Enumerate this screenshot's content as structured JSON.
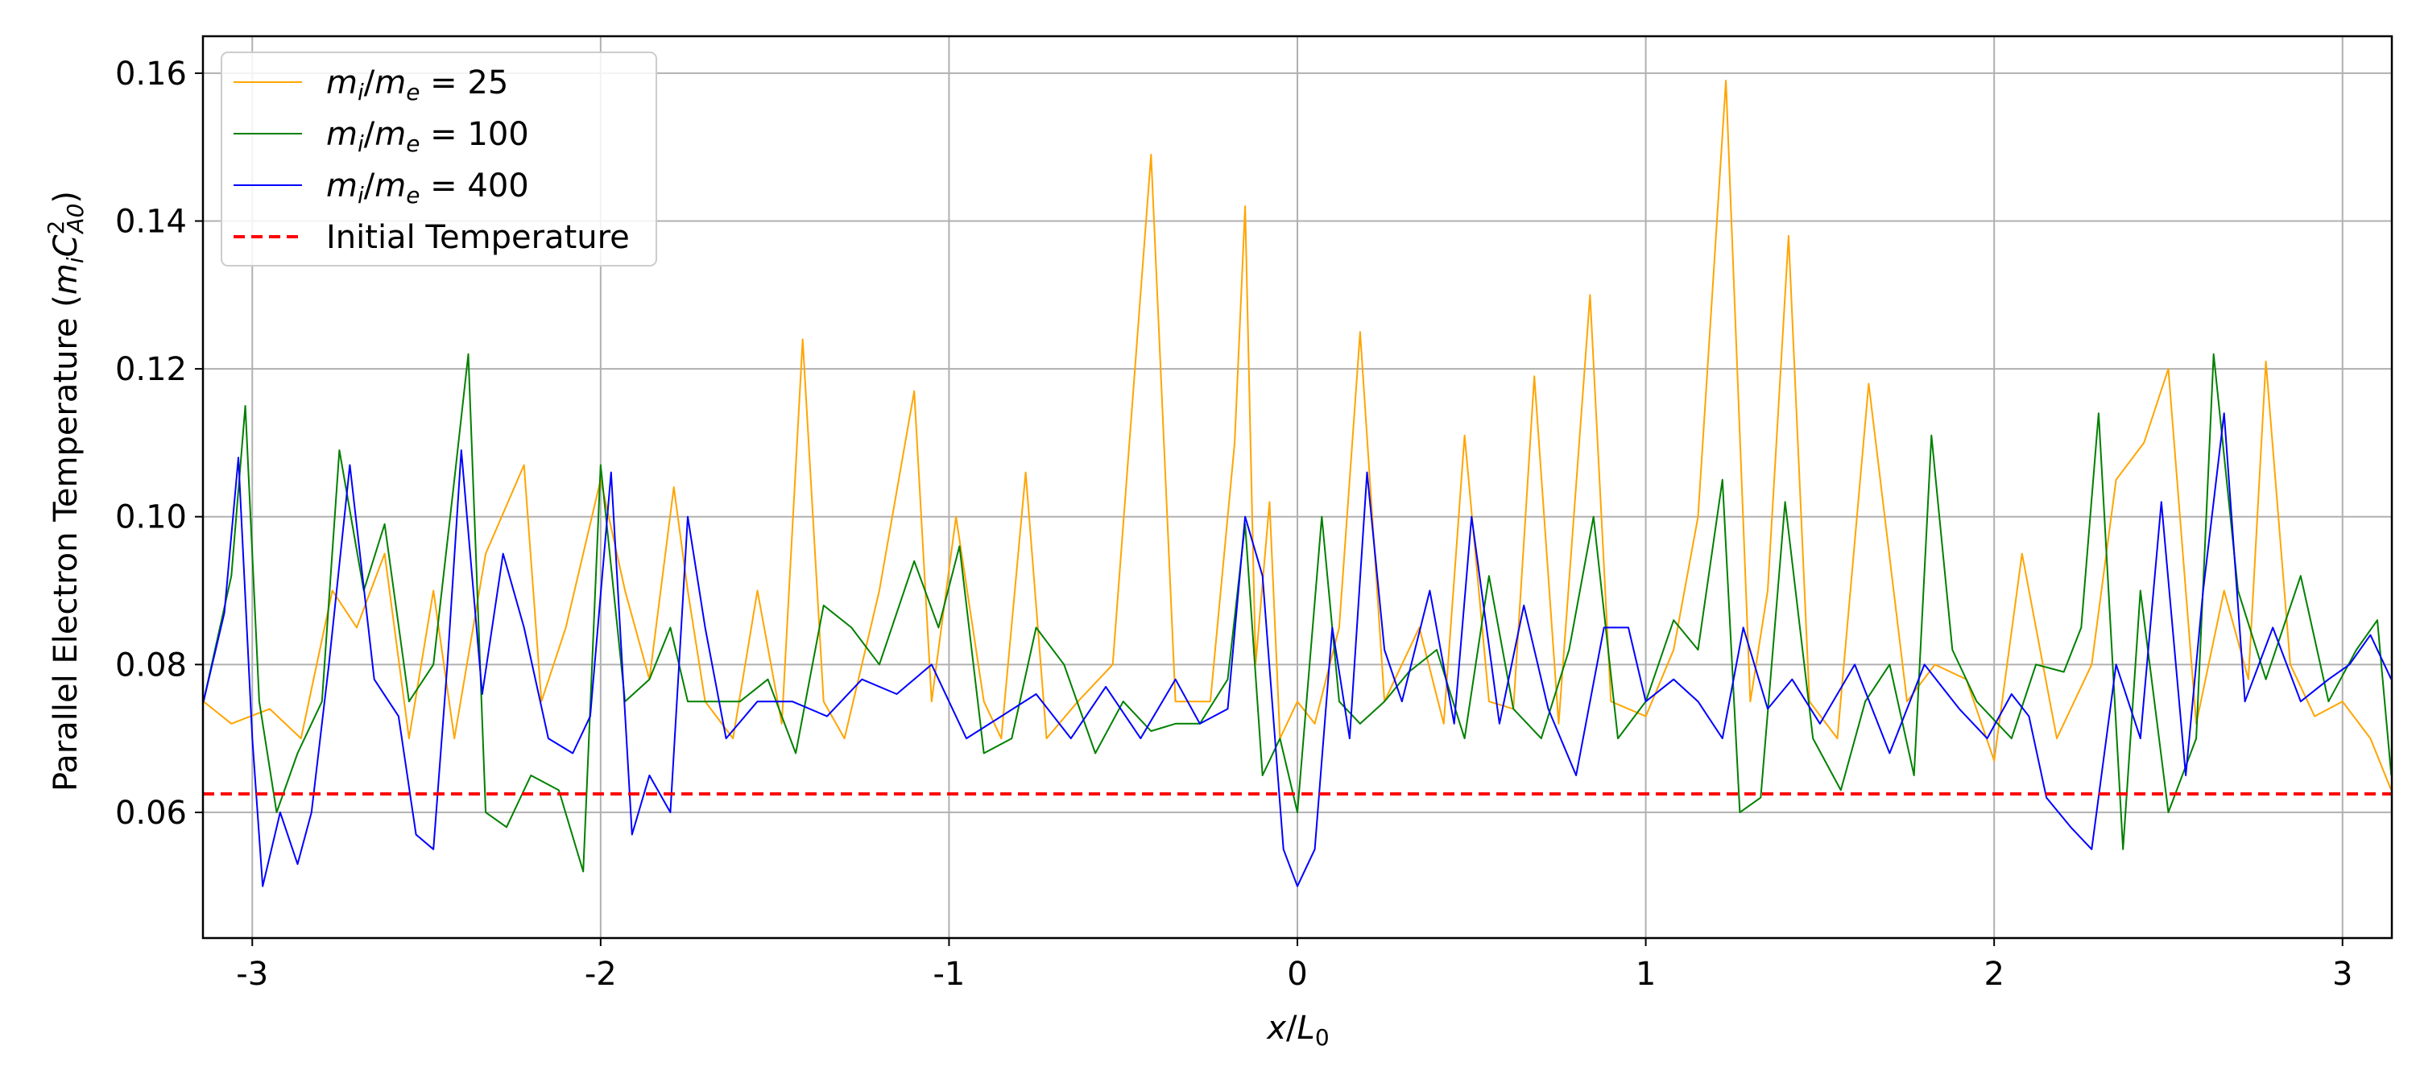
{
  "chart_data": {
    "type": "line",
    "title": "",
    "xlabel": "x/L0",
    "ylabel": "Parallel Electron Temperature (miCA0^2)",
    "xlim": [
      -3.1416,
      3.1416
    ],
    "ylim": [
      0.043,
      0.165
    ],
    "grid": true,
    "legend_position": "top-left",
    "x_ticks": [
      -3,
      -2,
      -1,
      0,
      1,
      2,
      3
    ],
    "x_tick_labels": [
      "-3",
      "-2",
      "-1",
      "0",
      "1",
      "2",
      "3"
    ],
    "y_ticks": [
      0.06,
      0.08,
      0.1,
      0.12,
      0.14,
      0.16
    ],
    "y_tick_labels": [
      "0.06",
      "0.08",
      "0.10",
      "0.12",
      "0.14",
      "0.16"
    ],
    "legend": {
      "mass25": "m_i/m_e = 25",
      "mass100": "m_i/m_e = 100",
      "mass400": "m_i/m_e = 400",
      "initial": "Initial Temperature"
    },
    "series": [
      {
        "name": "m_i/m_e = 25",
        "color": "#FFA500",
        "x": [
          -3.14,
          -3.06,
          -2.95,
          -2.86,
          -2.77,
          -2.7,
          -2.62,
          -2.55,
          -2.48,
          -2.42,
          -2.33,
          -2.22,
          -2.17,
          -2.1,
          -2.0,
          -1.93,
          -1.86,
          -1.79,
          -1.75,
          -1.7,
          -1.62,
          -1.55,
          -1.48,
          -1.42,
          -1.36,
          -1.3,
          -1.2,
          -1.1,
          -1.05,
          -0.98,
          -0.9,
          -0.85,
          -0.78,
          -0.72,
          -0.63,
          -0.53,
          -0.42,
          -0.35,
          -0.25,
          -0.18,
          -0.15,
          -0.12,
          -0.08,
          -0.05,
          0.0,
          0.05,
          0.12,
          0.18,
          0.25,
          0.35,
          0.42,
          0.48,
          0.55,
          0.62,
          0.68,
          0.75,
          0.84,
          0.9,
          1.0,
          1.08,
          1.15,
          1.23,
          1.3,
          1.35,
          1.41,
          1.47,
          1.55,
          1.64,
          1.75,
          1.83,
          1.92,
          2.0,
          2.08,
          2.18,
          2.28,
          2.35,
          2.43,
          2.5,
          2.58,
          2.66,
          2.73,
          2.78,
          2.85,
          2.92,
          3.0,
          3.08,
          3.14
        ],
        "values": [
          0.075,
          0.072,
          0.074,
          0.07,
          0.09,
          0.085,
          0.095,
          0.07,
          0.09,
          0.07,
          0.095,
          0.107,
          0.075,
          0.085,
          0.105,
          0.09,
          0.078,
          0.104,
          0.09,
          0.075,
          0.07,
          0.09,
          0.072,
          0.124,
          0.075,
          0.07,
          0.09,
          0.117,
          0.075,
          0.1,
          0.075,
          0.07,
          0.106,
          0.07,
          0.075,
          0.08,
          0.149,
          0.075,
          0.075,
          0.11,
          0.142,
          0.08,
          0.102,
          0.07,
          0.075,
          0.072,
          0.085,
          0.125,
          0.075,
          0.085,
          0.072,
          0.111,
          0.075,
          0.074,
          0.119,
          0.072,
          0.13,
          0.075,
          0.073,
          0.082,
          0.1,
          0.159,
          0.075,
          0.09,
          0.138,
          0.075,
          0.07,
          0.118,
          0.075,
          0.08,
          0.078,
          0.067,
          0.095,
          0.07,
          0.08,
          0.105,
          0.11,
          0.12,
          0.072,
          0.09,
          0.078,
          0.121,
          0.08,
          0.073,
          0.075,
          0.07,
          0.063
        ]
      },
      {
        "name": "m_i/m_e = 100",
        "color": "#008000",
        "x": [
          -3.14,
          -3.06,
          -3.02,
          -2.98,
          -2.93,
          -2.87,
          -2.8,
          -2.75,
          -2.68,
          -2.62,
          -2.55,
          -2.48,
          -2.42,
          -2.38,
          -2.33,
          -2.27,
          -2.2,
          -2.12,
          -2.05,
          -2.0,
          -1.93,
          -1.86,
          -1.8,
          -1.75,
          -1.68,
          -1.6,
          -1.52,
          -1.44,
          -1.36,
          -1.28,
          -1.2,
          -1.1,
          -1.03,
          -0.97,
          -0.9,
          -0.82,
          -0.75,
          -0.67,
          -0.58,
          -0.5,
          -0.42,
          -0.35,
          -0.28,
          -0.2,
          -0.15,
          -0.1,
          -0.05,
          0.0,
          0.07,
          0.12,
          0.18,
          0.25,
          0.32,
          0.4,
          0.48,
          0.55,
          0.62,
          0.7,
          0.78,
          0.85,
          0.92,
          1.0,
          1.08,
          1.15,
          1.22,
          1.27,
          1.33,
          1.4,
          1.48,
          1.56,
          1.63,
          1.7,
          1.77,
          1.82,
          1.88,
          1.95,
          2.05,
          2.12,
          2.2,
          2.25,
          2.3,
          2.37,
          2.42,
          2.5,
          2.58,
          2.63,
          2.7,
          2.78,
          2.88,
          2.96,
          3.04,
          3.1,
          3.14
        ],
        "values": [
          0.075,
          0.092,
          0.115,
          0.075,
          0.06,
          0.068,
          0.075,
          0.109,
          0.09,
          0.099,
          0.075,
          0.08,
          0.105,
          0.122,
          0.06,
          0.058,
          0.065,
          0.063,
          0.052,
          0.107,
          0.075,
          0.078,
          0.085,
          0.075,
          0.075,
          0.075,
          0.078,
          0.068,
          0.088,
          0.085,
          0.08,
          0.094,
          0.085,
          0.096,
          0.068,
          0.07,
          0.085,
          0.08,
          0.068,
          0.075,
          0.071,
          0.072,
          0.072,
          0.078,
          0.099,
          0.065,
          0.07,
          0.06,
          0.1,
          0.075,
          0.072,
          0.075,
          0.079,
          0.082,
          0.07,
          0.092,
          0.074,
          0.07,
          0.082,
          0.1,
          0.07,
          0.075,
          0.086,
          0.082,
          0.105,
          0.06,
          0.062,
          0.102,
          0.07,
          0.063,
          0.075,
          0.08,
          0.065,
          0.111,
          0.082,
          0.075,
          0.07,
          0.08,
          0.079,
          0.085,
          0.114,
          0.055,
          0.09,
          0.06,
          0.07,
          0.122,
          0.09,
          0.078,
          0.092,
          0.075,
          0.082,
          0.086,
          0.065
        ]
      },
      {
        "name": "m_i/m_e = 400",
        "color": "#0000FF",
        "x": [
          -3.14,
          -3.08,
          -3.04,
          -3.0,
          -2.97,
          -2.92,
          -2.87,
          -2.83,
          -2.78,
          -2.72,
          -2.65,
          -2.58,
          -2.53,
          -2.48,
          -2.44,
          -2.4,
          -2.34,
          -2.28,
          -2.22,
          -2.15,
          -2.08,
          -2.03,
          -1.97,
          -1.91,
          -1.86,
          -1.8,
          -1.75,
          -1.7,
          -1.64,
          -1.55,
          -1.45,
          -1.35,
          -1.25,
          -1.15,
          -1.05,
          -0.95,
          -0.85,
          -0.75,
          -0.65,
          -0.55,
          -0.45,
          -0.35,
          -0.28,
          -0.2,
          -0.15,
          -0.1,
          -0.04,
          0.0,
          0.05,
          0.1,
          0.15,
          0.2,
          0.25,
          0.3,
          0.38,
          0.45,
          0.5,
          0.58,
          0.65,
          0.72,
          0.8,
          0.88,
          0.95,
          1.0,
          1.08,
          1.15,
          1.22,
          1.28,
          1.35,
          1.42,
          1.5,
          1.6,
          1.7,
          1.8,
          1.9,
          1.98,
          2.05,
          2.1,
          2.15,
          2.22,
          2.28,
          2.35,
          2.42,
          2.48,
          2.55,
          2.6,
          2.66,
          2.72,
          2.8,
          2.88,
          2.96,
          3.02,
          3.08,
          3.14
        ],
        "values": [
          0.075,
          0.087,
          0.108,
          0.07,
          0.05,
          0.06,
          0.053,
          0.06,
          0.08,
          0.107,
          0.078,
          0.073,
          0.057,
          0.055,
          0.08,
          0.109,
          0.076,
          0.095,
          0.085,
          0.07,
          0.068,
          0.073,
          0.106,
          0.057,
          0.065,
          0.06,
          0.1,
          0.085,
          0.07,
          0.075,
          0.075,
          0.073,
          0.078,
          0.076,
          0.08,
          0.07,
          0.073,
          0.076,
          0.07,
          0.077,
          0.07,
          0.078,
          0.072,
          0.074,
          0.1,
          0.092,
          0.055,
          0.05,
          0.055,
          0.085,
          0.07,
          0.106,
          0.082,
          0.075,
          0.09,
          0.072,
          0.1,
          0.072,
          0.088,
          0.074,
          0.065,
          0.085,
          0.085,
          0.075,
          0.078,
          0.075,
          0.07,
          0.085,
          0.074,
          0.078,
          0.072,
          0.08,
          0.068,
          0.08,
          0.074,
          0.07,
          0.076,
          0.073,
          0.062,
          0.058,
          0.055,
          0.08,
          0.07,
          0.102,
          0.065,
          0.09,
          0.114,
          0.075,
          0.085,
          0.075,
          0.078,
          0.08,
          0.084,
          0.078
        ]
      },
      {
        "name": "Initial Temperature",
        "color": "#FF0000",
        "style": "dashed",
        "x": [
          -3.1416,
          3.1416
        ],
        "values": [
          0.0625,
          0.0625
        ]
      }
    ]
  }
}
